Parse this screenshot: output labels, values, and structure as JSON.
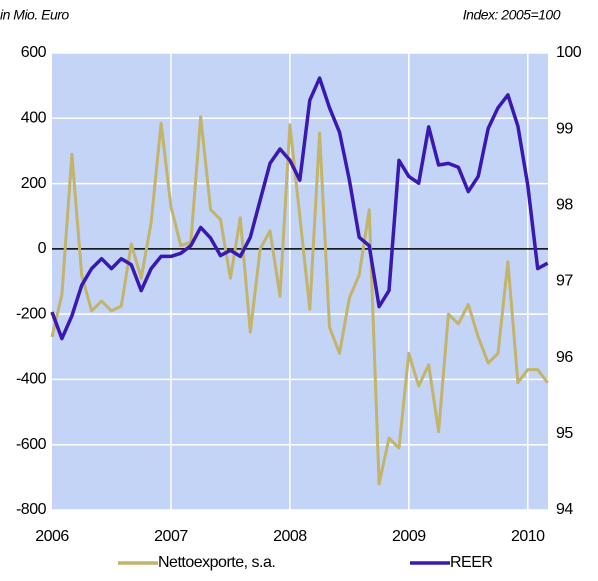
{
  "chart_data": {
    "type": "line",
    "left_axis_label": "in Mio. Euro",
    "right_axis_label": "Index: 2005=100",
    "x": [
      2006,
      2006.083,
      2006.167,
      2006.25,
      2006.333,
      2006.417,
      2006.5,
      2006.583,
      2006.667,
      2006.75,
      2006.833,
      2006.917,
      2007,
      2007.083,
      2007.167,
      2007.25,
      2007.333,
      2007.417,
      2007.5,
      2007.583,
      2007.667,
      2007.75,
      2007.833,
      2007.917,
      2008,
      2008.083,
      2008.167,
      2008.25,
      2008.333,
      2008.417,
      2008.5,
      2008.583,
      2008.667,
      2008.75,
      2008.833,
      2008.917,
      2009,
      2009.083,
      2009.167,
      2009.25,
      2009.333,
      2009.417,
      2009.5,
      2009.583,
      2009.667,
      2009.75,
      2009.833,
      2009.917,
      2010,
      2010.083,
      2010.167
    ],
    "xlim": [
      2006,
      2010.17
    ],
    "xticks": [
      2006,
      2007,
      2008,
      2009,
      2010
    ],
    "ylim": [
      -800,
      600
    ],
    "yticks": [
      -800,
      -600,
      -400,
      -200,
      0,
      200,
      400,
      600
    ],
    "y2lim": [
      94,
      100
    ],
    "y2ticks": [
      94,
      95,
      96,
      97,
      98,
      99,
      100
    ],
    "grid": true,
    "series": [
      {
        "name": "Nettoexporte, s.a.",
        "color": "#c2b46a",
        "axis": "y",
        "values": [
          -270,
          -140,
          290,
          -80,
          -190,
          -160,
          -190,
          -175,
          15,
          -90,
          80,
          385,
          130,
          10,
          20,
          405,
          120,
          90,
          -90,
          95,
          -255,
          0,
          55,
          -145,
          380,
          100,
          -185,
          355,
          -240,
          -320,
          -150,
          -80,
          120,
          -720,
          -580,
          -610,
          -320,
          -420,
          -355,
          -560,
          -200,
          -230,
          -170,
          -270,
          -350,
          -320,
          -40,
          -410,
          -370,
          -370,
          -410
        ]
      },
      {
        "name": "REER",
        "color": "#3a18b2",
        "axis": "y2",
        "values": [
          96.6,
          96.25,
          96.55,
          96.95,
          97.17,
          97.3,
          97.17,
          97.3,
          97.22,
          96.88,
          97.17,
          97.33,
          97.33,
          97.37,
          97.47,
          97.71,
          97.57,
          97.34,
          97.41,
          97.33,
          97.58,
          98.07,
          98.55,
          98.74,
          98.59,
          98.33,
          99.38,
          99.67,
          99.28,
          98.96,
          98.33,
          97.58,
          97.47,
          96.67,
          96.88,
          98.59,
          98.38,
          98.29,
          99.03,
          98.53,
          98.55,
          98.5,
          98.18,
          98.38,
          99.01,
          99.28,
          99.45,
          99.04,
          98.26,
          97.17,
          97.24
        ]
      }
    ]
  }
}
